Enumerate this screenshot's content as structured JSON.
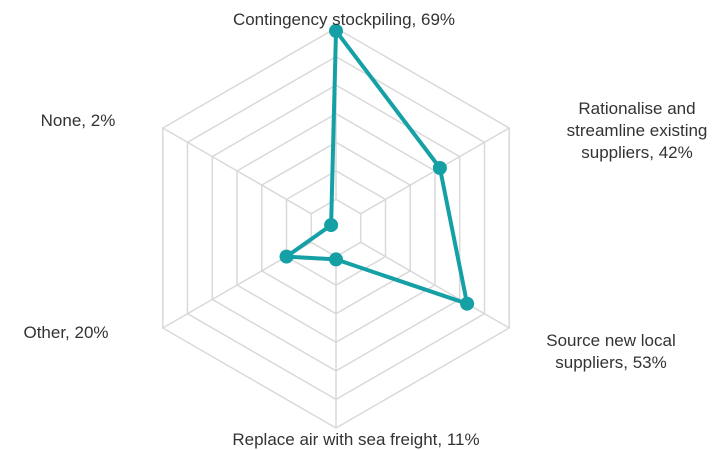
{
  "chart_data": {
    "type": "radar",
    "title": "",
    "categories": [
      "Contingency stockpiling, 69%",
      "Rationalise and streamline existing suppliers, 42%",
      "Source new local suppliers, 53%",
      "Replace air with sea freight, 11%",
      "Other, 20%",
      "None, 2%"
    ],
    "label_lines": [
      [
        "Contingency stockpiling, 69%"
      ],
      [
        "Rationalise and",
        "streamline existing",
        "suppliers, 42%"
      ],
      [
        "Source new local",
        "suppliers, 53%"
      ],
      [
        "Replace air with sea freight, 11%"
      ],
      [
        "Other, 20%"
      ],
      [
        "None, 2%"
      ]
    ],
    "series": [
      {
        "values": [
          69,
          42,
          53,
          11,
          20,
          2
        ],
        "color": "#15a0a6"
      }
    ],
    "rlim": [
      0,
      70
    ],
    "grid_rings": 7,
    "grid": true,
    "legend": "none"
  }
}
